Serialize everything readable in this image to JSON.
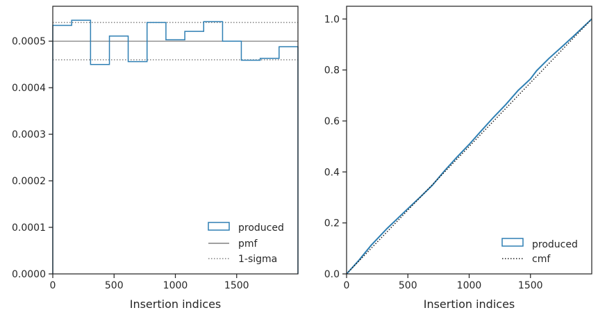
{
  "chart_data": [
    {
      "type": "step-histogram",
      "xlabel": "Insertion indices",
      "ylabel": "",
      "xlim": [
        0,
        2000
      ],
      "ylim": [
        0,
        0.000575
      ],
      "xticks": [
        0,
        500,
        1000,
        1500
      ],
      "xtick_labels": [
        "0",
        "500",
        "1000",
        "1500"
      ],
      "yticks": [
        0,
        0.0001,
        0.0002,
        0.0003,
        0.0004,
        0.0005
      ],
      "ytick_labels": [
        "0.0000",
        "0.0001",
        "0.0002",
        "0.0003",
        "0.0004",
        "0.0005"
      ],
      "bin_edges": [
        0,
        154,
        308,
        462,
        615,
        769,
        923,
        1077,
        1231,
        1385,
        1538,
        1692,
        1846,
        2000
      ],
      "series": [
        {
          "name": "produced",
          "style": "step",
          "color": "#2e7fb3",
          "values": [
            0.000534,
            0.000545,
            0.00045,
            0.000511,
            0.000456,
            0.00054,
            0.000503,
            0.000521,
            0.000542,
            0.0005,
            0.000459,
            0.000463,
            0.000488
          ]
        },
        {
          "name": "pmf",
          "style": "hline",
          "color": "#808080",
          "value": 0.0005
        },
        {
          "name": "1-sigma",
          "style": "dotted-hline",
          "color": "#808080",
          "values": [
            0.00046,
            0.00054
          ]
        }
      ],
      "legend": {
        "placement": "lower-right",
        "entries": [
          "produced",
          "pmf",
          "1-sigma"
        ]
      },
      "grid": false
    },
    {
      "type": "line",
      "xlabel": "Insertion indices",
      "ylabel": "",
      "xlim": [
        0,
        2000
      ],
      "ylim": [
        0,
        1.05
      ],
      "xticks": [
        0,
        500,
        1000,
        1500
      ],
      "xtick_labels": [
        "0",
        "500",
        "1000",
        "1500"
      ],
      "yticks": [
        0,
        0.2,
        0.4,
        0.6,
        0.8,
        1.0
      ],
      "ytick_labels": [
        "0.0",
        "0.2",
        "0.4",
        "0.6",
        "0.8",
        "1.0"
      ],
      "series": [
        {
          "name": "produced",
          "style": "solid",
          "color": "#2e7fb3",
          "x": [
            0,
            100,
            200,
            330,
            450,
            520,
            600,
            700,
            800,
            900,
            1000,
            1100,
            1200,
            1300,
            1400,
            1500,
            1550,
            1650,
            1750,
            1850,
            2000
          ],
          "y": [
            0,
            0.053,
            0.112,
            0.178,
            0.233,
            0.265,
            0.301,
            0.348,
            0.405,
            0.458,
            0.508,
            0.562,
            0.615,
            0.665,
            0.72,
            0.765,
            0.797,
            0.845,
            0.888,
            0.932,
            1.0
          ]
        },
        {
          "name": "cmf",
          "style": "dotted",
          "color": "#1f1f1f",
          "x": [
            0,
            2000
          ],
          "y": [
            0,
            1.0
          ]
        }
      ],
      "legend": {
        "placement": "lower-right",
        "entries": [
          "produced",
          "cmf"
        ]
      },
      "grid": false
    }
  ]
}
